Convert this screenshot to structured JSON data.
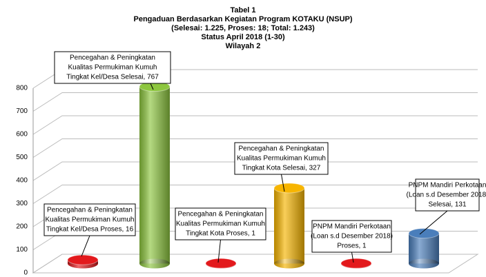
{
  "chart_data": {
    "type": "bar",
    "title": [
      "Tabel 1",
      "Pengaduan Berdasarkan Kegiatan Program KOTAKU (NSUP)",
      "(Selesai: 1.225, Proses: 18; Total: 1.243)",
      "Status April 2018 (1-30)",
      "Wilayah 2"
    ],
    "values": [
      16,
      767,
      1,
      327,
      1,
      131
    ],
    "value_labels": [
      [
        "Pencegahan & Peningkatan",
        "Kualitas Permukiman Kumuh",
        "Tingkat Kel/Desa Proses, 16"
      ],
      [
        "Pencegahan & Peningkatan",
        "Kualitas Permukiman Kumuh",
        "Tingkat Kel/Desa Selesai, 767"
      ],
      [
        "Pencegahan & Peningkatan",
        "Kualitas Permukiman Kumuh",
        "Tingkat Kota Proses, 1"
      ],
      [
        "Pencegahan & Peningkatan",
        "Kualitas Permukiman Kumuh",
        "Tingkat Kota Selesai, 327"
      ],
      [
        "PNPM Mandiri Perkotaan",
        "(Loan s.d Desember 2018)",
        "Proses, 1"
      ],
      [
        "PNPM Mandiri Perkotaan",
        "(Loan s.d Desember 2018)",
        "Selesai, 131"
      ]
    ],
    "colors": [
      "#e3191c",
      "#8dc63f",
      "#e3191c",
      "#f7b500",
      "#e3191c",
      "#4a7ebb"
    ],
    "ylim": [
      0,
      800
    ],
    "yticks": [
      0,
      100,
      200,
      300,
      400,
      500,
      600,
      700,
      800
    ],
    "grid": true
  }
}
